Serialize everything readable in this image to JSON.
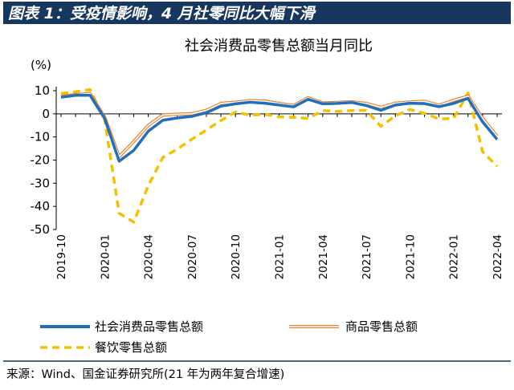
{
  "figure": {
    "title": "图表 1：受疫情影响，4 月社零同比大幅下滑",
    "source": "来源：Wind、国金证券研究所(21 年为两年复合增速)"
  },
  "colors": {
    "title_bar": "#17375e",
    "series_total": "#1f6fbf",
    "series_goods_outer": "#e8822f",
    "series_catering": "#f5c000"
  },
  "chart_data": {
    "type": "line",
    "title": "社会消费品零售总额当月同比",
    "ylabel": "(%)",
    "ylim": [
      -50,
      10
    ],
    "yticks": [
      10,
      0,
      -10,
      -20,
      -30,
      -40,
      -50
    ],
    "x": [
      "2019-10",
      "2019-11",
      "2019-12",
      "2020-01",
      "2020-02",
      "2020-03",
      "2020-04",
      "2020-05",
      "2020-06",
      "2020-07",
      "2020-08",
      "2020-09",
      "2020-10",
      "2020-11",
      "2020-12",
      "2021-01",
      "2021-02",
      "2021-03",
      "2021-04",
      "2021-05",
      "2021-06",
      "2021-07",
      "2021-08",
      "2021-09",
      "2021-10",
      "2021-11",
      "2021-12",
      "2022-01",
      "2022-02",
      "2022-03",
      "2022-04"
    ],
    "xtick_labels": [
      "2019-10",
      "2020-01",
      "2020-04",
      "2020-07",
      "2020-10",
      "2021-01",
      "2021-04",
      "2021-07",
      "2021-10",
      "2022-01",
      "2022-04"
    ],
    "series": [
      {
        "name": "社会消费品零售总额",
        "values": [
          7.2,
          8.0,
          8.0,
          -2.0,
          -20.5,
          -15.8,
          -7.5,
          -2.8,
          -1.8,
          -1.1,
          0.5,
          3.3,
          4.3,
          5.0,
          4.6,
          3.8,
          3.0,
          6.3,
          4.3,
          4.5,
          4.9,
          3.6,
          1.5,
          3.8,
          4.6,
          4.4,
          3.1,
          4.5,
          6.7,
          -3.5,
          -11.1
        ]
      },
      {
        "name": "商品零售总额",
        "values": [
          7.5,
          8.3,
          8.7,
          -1.5,
          -18.5,
          -12.0,
          -5.0,
          -0.5,
          -0.2,
          0.0,
          1.5,
          4.5,
          5.0,
          5.7,
          5.5,
          4.5,
          3.6,
          7.0,
          4.7,
          4.9,
          5.2,
          4.5,
          2.8,
          4.6,
          5.1,
          5.4,
          3.7,
          5.8,
          7.6,
          -2.0,
          -9.7
        ]
      },
      {
        "name": "餐饮零售总额",
        "values": [
          8.8,
          9.5,
          10.5,
          -2.5,
          -43.0,
          -46.8,
          -31.1,
          -18.9,
          -15.2,
          -11.0,
          -7.0,
          -2.9,
          0.8,
          -0.6,
          -0.2,
          -1.3,
          -1.5,
          -2.0,
          1.4,
          1.0,
          1.4,
          1.5,
          -5.4,
          -0.9,
          1.9,
          0.2,
          -2.2,
          -2.0,
          9.0,
          -16.4,
          -22.7
        ]
      }
    ],
    "legend": {
      "placement": "bottom"
    },
    "grid": false
  }
}
